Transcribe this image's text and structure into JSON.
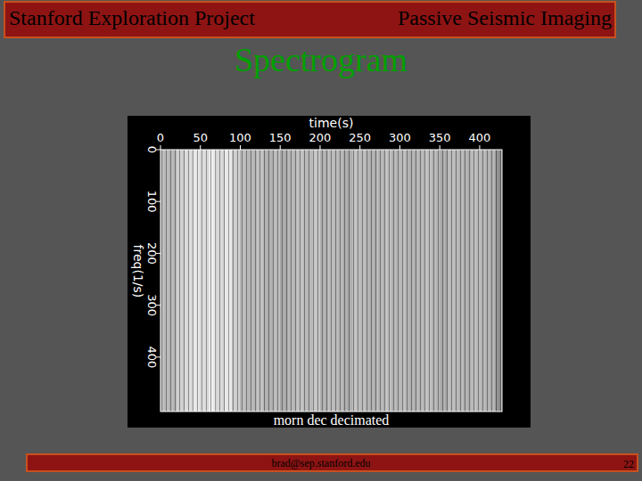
{
  "header": {
    "left": "Stanford Exploration Project",
    "right": "Passive Seismic Imaging"
  },
  "slide_title": "Spectrogram",
  "chart_data": {
    "type": "heatmap",
    "title": "morn  dec decimated",
    "xlabel": "time(s)",
    "ylabel": "freq(1/s)",
    "xlim": [
      0,
      428
    ],
    "ylim": [
      0,
      505
    ],
    "xticks": [
      0,
      50,
      100,
      150,
      200,
      250,
      300,
      350,
      400
    ],
    "yticks": [
      0,
      100,
      200,
      300,
      400
    ],
    "bins": [
      0,
      10,
      20,
      30,
      40,
      50,
      60,
      70,
      80,
      90,
      100,
      110,
      120,
      130,
      140,
      150,
      160,
      170,
      180,
      190,
      200,
      210,
      220,
      230,
      240,
      250,
      260,
      270,
      280,
      290,
      300,
      310,
      320,
      330,
      340,
      350,
      360,
      370,
      380,
      390,
      400,
      410,
      420
    ],
    "values": [
      0.72,
      0.7,
      0.8,
      0.85,
      0.9,
      0.86,
      0.92,
      0.84,
      0.9,
      0.8,
      0.72,
      0.7,
      0.74,
      0.68,
      0.72,
      0.66,
      0.7,
      0.74,
      0.7,
      0.76,
      0.68,
      0.72,
      0.7,
      0.66,
      0.74,
      0.72,
      0.68,
      0.7,
      0.74,
      0.7,
      0.72,
      0.68,
      0.7,
      0.74,
      0.7,
      0.66,
      0.72,
      0.7,
      0.68,
      0.72,
      0.7,
      0.68
    ],
    "grid": false
  },
  "footer": {
    "email": "brad@sep.stanford.edu",
    "page": 22
  }
}
